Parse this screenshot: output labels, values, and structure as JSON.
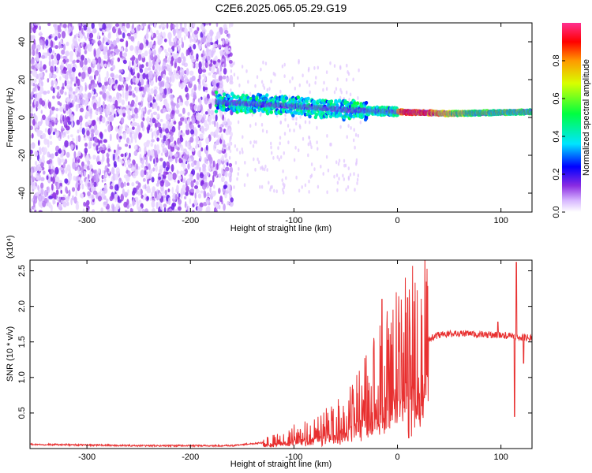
{
  "chart_data": [
    {
      "type": "heatmap",
      "title": "C2E6.2025.065.05.29.G19",
      "xlabel": "Height of straight line (km)",
      "ylabel": "Frequency (Hz)",
      "xlim": [
        -355,
        130
      ],
      "ylim": [
        -50,
        50
      ],
      "x_ticks": [
        -300,
        -200,
        -100,
        0,
        100
      ],
      "y_ticks": [
        -40,
        -20,
        0,
        20,
        40
      ],
      "grid": false,
      "colorbar": {
        "label": "Normalized spectral amplitude",
        "range": [
          0,
          1
        ],
        "ticks": [
          "0.0",
          "0.2",
          "0.4",
          "0.6",
          "0.8"
        ]
      },
      "features": {
        "noise_region_x": [
          -355,
          -160
        ],
        "trace_center_hz": [
          {
            "x": -170,
            "hz": 8
          },
          {
            "x": -100,
            "hz": 6
          },
          {
            "x": -50,
            "hz": 4
          },
          {
            "x": 0,
            "hz": 3
          },
          {
            "x": 50,
            "hz": 2
          },
          {
            "x": 130,
            "hz": 3
          }
        ]
      }
    },
    {
      "type": "line",
      "title": "",
      "xlabel": "Height of straight line (km)",
      "ylabel": "SNR (10 * v/v)",
      "y_multiplier": "(x10⁴)",
      "xlim": [
        -355,
        130
      ],
      "ylim": [
        0,
        2.65
      ],
      "x_ticks": [
        -300,
        -200,
        -100,
        0,
        100
      ],
      "y_ticks": [
        "0.5",
        "1.0",
        "1.5",
        "2.0",
        "2.5"
      ],
      "grid": false,
      "series": [
        {
          "name": "",
          "color": "#e83030",
          "envelope": [
            {
              "x": -355,
              "y": 0.06
            },
            {
              "x": -250,
              "y": 0.04
            },
            {
              "x": -160,
              "y": 0.04
            },
            {
              "x": -120,
              "y": 0.1
            },
            {
              "x": -100,
              "y": 0.18
            },
            {
              "x": -80,
              "y": 0.25
            },
            {
              "x": -60,
              "y": 0.35
            },
            {
              "x": -40,
              "y": 0.55
            },
            {
              "x": -20,
              "y": 0.9
            },
            {
              "x": -5,
              "y": 1.2
            },
            {
              "x": 10,
              "y": 1.3
            },
            {
              "x": 25,
              "y": 1.5
            },
            {
              "x": 40,
              "y": 1.6
            },
            {
              "x": 60,
              "y": 1.62
            },
            {
              "x": 80,
              "y": 1.6
            },
            {
              "x": 100,
              "y": 1.6
            },
            {
              "x": 110,
              "y": 1.58
            },
            {
              "x": 130,
              "y": 1.55
            }
          ],
          "spikes": [
            {
              "x": -15,
              "y": 2.1
            },
            {
              "x": 10,
              "y": 2.12
            },
            {
              "x": 11,
              "y": 0.15
            },
            {
              "x": 97,
              "y": 1.78
            },
            {
              "x": 113,
              "y": 0.45
            },
            {
              "x": 115,
              "y": 2.62
            },
            {
              "x": 122,
              "y": 1.2
            }
          ]
        }
      ]
    }
  ]
}
